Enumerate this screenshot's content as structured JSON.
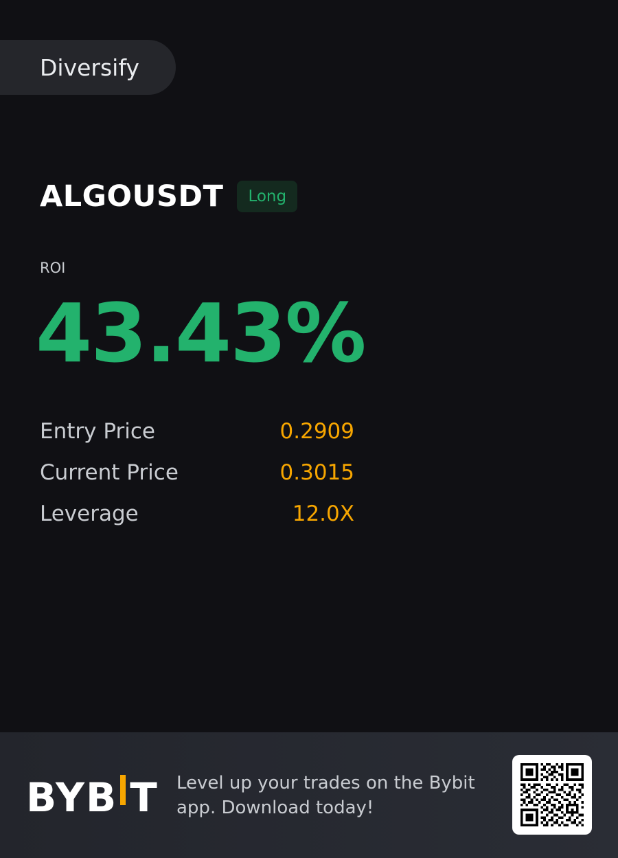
{
  "tag": {
    "label": "Diversify"
  },
  "position": {
    "pair": "ALGOUSDT",
    "side": "Long",
    "roi_label": "ROI",
    "roi_value": "43.43%"
  },
  "stats": [
    {
      "label": "Entry Price",
      "value": "0.2909"
    },
    {
      "label": "Current Price",
      "value": "0.3015"
    },
    {
      "label": "Leverage",
      "value": "12.0X"
    }
  ],
  "footer": {
    "brand_left": "BYB",
    "brand_right": "T",
    "tagline_line1": "Level up your trades on the Bybit",
    "tagline_line2": "app. Download today!",
    "qr_icon": "qr-code-icon"
  },
  "colors": {
    "background": "#101014",
    "profit_green": "#23b26d",
    "value_orange": "#f7a600",
    "footer_bg": "#25272e"
  }
}
